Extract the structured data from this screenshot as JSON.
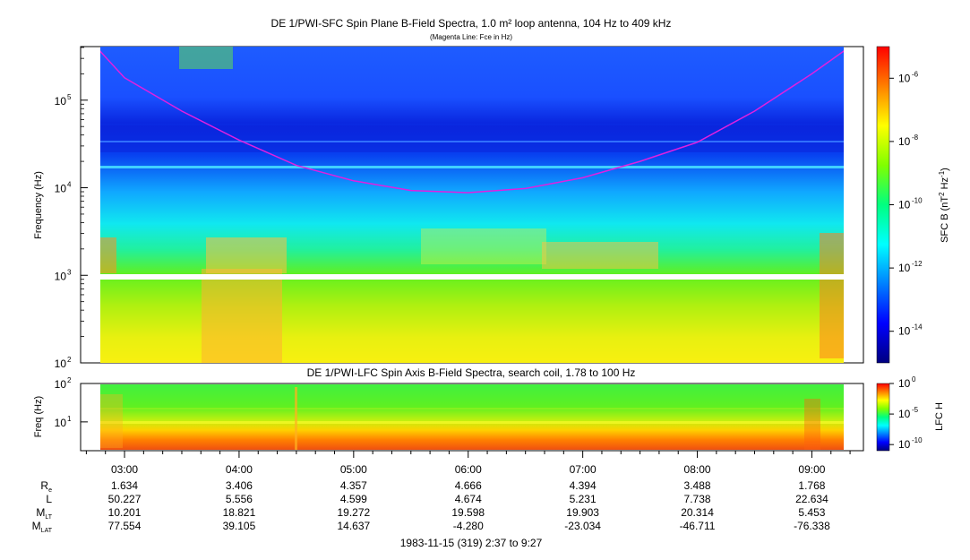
{
  "top_title": "DE 1/PWI-SFC  Spin Plane B-Field Spectra, 1.0 m² loop antenna, 104 Hz to 409 kHz",
  "top_subtitle": "(Magenta Line: Fce in Hz)",
  "bottom_title": "DE 1/PWI-LFC  Spin Axis B-Field Spectra, search coil, 1.78 to 100 Hz",
  "footer_date": "1983-11-15 (319) 2:37 to 9:27",
  "colors": {
    "fce_line": "#e020e0",
    "colorbar_stops": [
      "#00007f",
      "#0000ff",
      "#0080ff",
      "#00ffff",
      "#00ff80",
      "#80ff00",
      "#ffff00",
      "#ff8000",
      "#ff0000"
    ]
  },
  "chart_data": [
    {
      "type": "heatmap",
      "title": "DE 1/PWI-SFC  Spin Plane B-Field Spectra, 1.0 m² loop antenna, 104 Hz to 409 kHz",
      "subtitle": "(Magenta Line: Fce in Hz)",
      "xlabel": "",
      "ylabel": "Frequency (Hz)",
      "yscale": "log",
      "ylim": [
        100,
        409000
      ],
      "y_tick_labels": [
        "10",
        "10",
        "10",
        "10"
      ],
      "y_tick_exponents": [
        "2",
        "3",
        "4",
        "5"
      ],
      "xlim": [
        "02:37",
        "09:27"
      ],
      "colorbar": {
        "label_text": "SFC B (nT",
        "label_sup1": "2",
        "label_mid": " Hz",
        "label_sup2": "-1",
        "label_end": ")",
        "scale": "log",
        "range": [
          1e-15,
          1e-05
        ],
        "tick_labels": [
          "10",
          "10",
          "10",
          "10",
          "10"
        ],
        "tick_exponents": [
          "-6",
          "-8",
          "-10",
          "-12",
          "-14"
        ]
      },
      "series": [
        {
          "name": "Fce",
          "x": [
            "02:45",
            "03:00",
            "03:30",
            "04:00",
            "04:30",
            "05:00",
            "05:30",
            "06:00",
            "06:30",
            "07:00",
            "07:30",
            "08:00",
            "08:30",
            "09:00",
            "09:20"
          ],
          "y": [
            409000,
            180000,
            75000,
            35000,
            18000,
            12000,
            9300,
            8800,
            9800,
            13000,
            20000,
            33000,
            75000,
            200000,
            409000
          ]
        }
      ]
    },
    {
      "type": "heatmap",
      "title": "DE 1/PWI-LFC  Spin Axis B-Field Spectra, search coil, 1.78 to 100 Hz",
      "ylabel": "Freq (Hz)",
      "yscale": "log",
      "ylim": [
        1.78,
        100
      ],
      "y_tick_labels": [
        "10",
        "10"
      ],
      "y_tick_exponents": [
        "2",
        "1"
      ],
      "colorbar": {
        "label": "LFC H",
        "scale": "log",
        "range": [
          1e-11,
          1
        ],
        "tick_labels": [
          "10",
          "10",
          "10"
        ],
        "tick_exponents": [
          "0",
          "-5",
          "-10"
        ]
      }
    }
  ],
  "x_axis": {
    "times": [
      "03:00",
      "04:00",
      "05:00",
      "06:00",
      "07:00",
      "08:00",
      "09:00"
    ],
    "rows": [
      {
        "label": "R",
        "sub": "e",
        "values": [
          "1.634",
          "3.406",
          "4.357",
          "4.666",
          "4.394",
          "3.488",
          "1.768"
        ]
      },
      {
        "label": "L",
        "sub": "",
        "values": [
          "50.227",
          "5.556",
          "4.599",
          "4.674",
          "5.231",
          "7.738",
          "22.634"
        ]
      },
      {
        "label": "M",
        "sub": "LT",
        "values": [
          "10.201",
          "18.821",
          "19.272",
          "19.598",
          "19.903",
          "20.314",
          "5.453"
        ]
      },
      {
        "label": "M",
        "sub": "LAT",
        "values": [
          "77.554",
          "39.105",
          "14.637",
          "-4.280",
          "-23.034",
          "-46.711",
          "-76.338"
        ]
      }
    ]
  }
}
